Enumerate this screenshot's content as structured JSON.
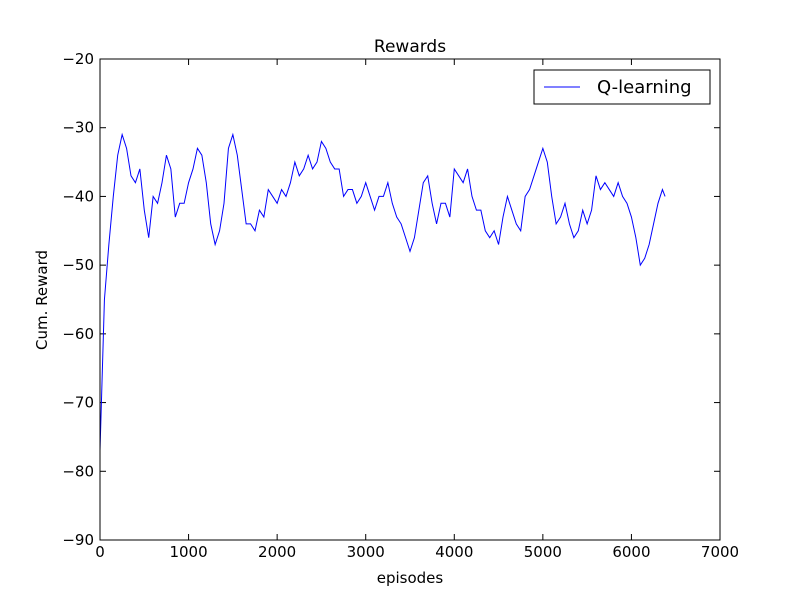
{
  "chart_data": {
    "type": "line",
    "title": "Rewards",
    "x_label": "episodes",
    "y_label": "Cum. Reward",
    "x": [
      0,
      50,
      100,
      150,
      200,
      250,
      300,
      350,
      400,
      450,
      500,
      550,
      600,
      650,
      700,
      750,
      800,
      850,
      900,
      950,
      1000,
      1050,
      1100,
      1150,
      1200,
      1250,
      1300,
      1350,
      1400,
      1450,
      1500,
      1550,
      1600,
      1650,
      1700,
      1750,
      1800,
      1850,
      1900,
      1950,
      2000,
      2050,
      2100,
      2150,
      2200,
      2250,
      2300,
      2350,
      2400,
      2450,
      2500,
      2550,
      2600,
      2650,
      2700,
      2750,
      2800,
      2850,
      2900,
      2950,
      3000,
      3050,
      3100,
      3150,
      3200,
      3250,
      3300,
      3350,
      3400,
      3450,
      3500,
      3550,
      3600,
      3650,
      3700,
      3750,
      3800,
      3850,
      3900,
      3950,
      4000,
      4050,
      4100,
      4150,
      4200,
      4250,
      4300,
      4350,
      4400,
      4450,
      4500,
      4550,
      4600,
      4650,
      4700,
      4750,
      4800,
      4850,
      4900,
      4950,
      5000,
      5050,
      5100,
      5150,
      5200,
      5250,
      5300,
      5350,
      5400,
      5450,
      5500,
      5550,
      5600,
      5650,
      5700,
      5750,
      5800,
      5850,
      5900,
      5950,
      6000,
      6050,
      6100,
      6150,
      6200,
      6250,
      6300,
      6350,
      6380
    ],
    "series": [
      {
        "name": "Q-learning",
        "color": "#0000ff",
        "values": [
          -77,
          -55,
          -47,
          -40,
          -34,
          -31,
          -33,
          -37,
          -38,
          -36,
          -42,
          -46,
          -40,
          -41,
          -38,
          -34,
          -36,
          -43,
          -41,
          -41,
          -38,
          -36,
          -33,
          -34,
          -38,
          -44,
          -47,
          -45,
          -41,
          -33,
          -31,
          -34,
          -39,
          -44,
          -44,
          -45,
          -42,
          -43,
          -39,
          -40,
          -41,
          -39,
          -40,
          -38,
          -35,
          -37,
          -36,
          -34,
          -36,
          -35,
          -32,
          -33,
          -35,
          -36,
          -36,
          -40,
          -39,
          -39,
          -41,
          -40,
          -38,
          -40,
          -42,
          -40,
          -40,
          -38,
          -41,
          -43,
          -44,
          -46,
          -48,
          -46,
          -42,
          -38,
          -37,
          -41,
          -44,
          -41,
          -41,
          -43,
          -36,
          -37,
          -38,
          -36,
          -40,
          -42,
          -42,
          -45,
          -46,
          -45,
          -47,
          -43,
          -40,
          -42,
          -44,
          -45,
          -40,
          -39,
          -37,
          -35,
          -33,
          -35,
          -40,
          -44,
          -43,
          -41,
          -44,
          -46,
          -45,
          -42,
          -44,
          -42,
          -37,
          -39,
          -38,
          -39,
          -40,
          -38,
          -40,
          -41,
          -43,
          -46,
          -50,
          -49,
          -47,
          -44,
          -41,
          -39,
          -40
        ]
      }
    ],
    "xlim": [
      0,
      7000
    ],
    "xticks": [
      0,
      1000,
      2000,
      3000,
      4000,
      5000,
      6000,
      7000
    ],
    "ylim": [
      -90,
      -20
    ],
    "yticks": [
      {
        "value": -90,
        "label": "−90"
      },
      {
        "value": -80,
        "label": "−80"
      },
      {
        "value": -70,
        "label": "−70"
      },
      {
        "value": -60,
        "label": "−60"
      },
      {
        "value": -50,
        "label": "−50"
      },
      {
        "value": -40,
        "label": "−40"
      },
      {
        "value": -30,
        "label": "−30"
      },
      {
        "value": -20,
        "label": "−20"
      }
    ],
    "legend": "upper right"
  }
}
